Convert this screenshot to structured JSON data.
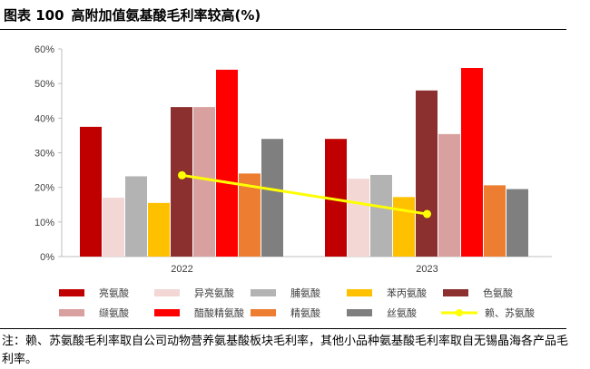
{
  "figure": {
    "label": "图表 100",
    "title": "高附加值氨基酸毛利率较高(%)"
  },
  "note": "注：赖、苏氨酸毛利率取自公司动物营养氨基酸板块毛利率，其他小品种氨基酸毛利率取自无锡晶海各产品毛利率。",
  "colors": {
    "亮氨酸": "#c00000",
    "异亮氨酸": "#f2d7d5",
    "脯氨酸": "#b3b3b3",
    "苯丙氨酸": "#ffc000",
    "色氨酸": "#8b2f2f",
    "缬氨酸": "#d9a0a0",
    "醋酸精氨酸": "#ff0000",
    "精氨酸": "#ed7d31",
    "丝氨酸": "#7f7f7f",
    "赖、苏氨酸": "#ffff00"
  },
  "chart_data": {
    "type": "bar",
    "categories": [
      "2022",
      "2023"
    ],
    "ylim": [
      0,
      60
    ],
    "yticks": [
      "0%",
      "10%",
      "20%",
      "30%",
      "40%",
      "50%",
      "60%"
    ],
    "grid": false,
    "legend_position": "bottom",
    "series": [
      {
        "name": "亮氨酸",
        "values": [
          37.5,
          34.0
        ]
      },
      {
        "name": "异亮氨酸",
        "values": [
          17.0,
          22.5
        ]
      },
      {
        "name": "脯氨酸",
        "values": [
          23.2,
          23.6
        ]
      },
      {
        "name": "苯丙氨酸",
        "values": [
          15.5,
          17.2
        ]
      },
      {
        "name": "色氨酸",
        "values": [
          43.2,
          48.0
        ]
      },
      {
        "name": "缬氨酸",
        "values": [
          43.2,
          35.4
        ]
      },
      {
        "name": "醋酸精氨酸",
        "values": [
          54.0,
          54.5
        ]
      },
      {
        "name": "精氨酸",
        "values": [
          24.0,
          20.6
        ]
      },
      {
        "name": "丝氨酸",
        "values": [
          34.0,
          19.5
        ]
      }
    ],
    "line_series": {
      "name": "赖、苏氨酸",
      "values": [
        23.5,
        12.3
      ]
    }
  }
}
